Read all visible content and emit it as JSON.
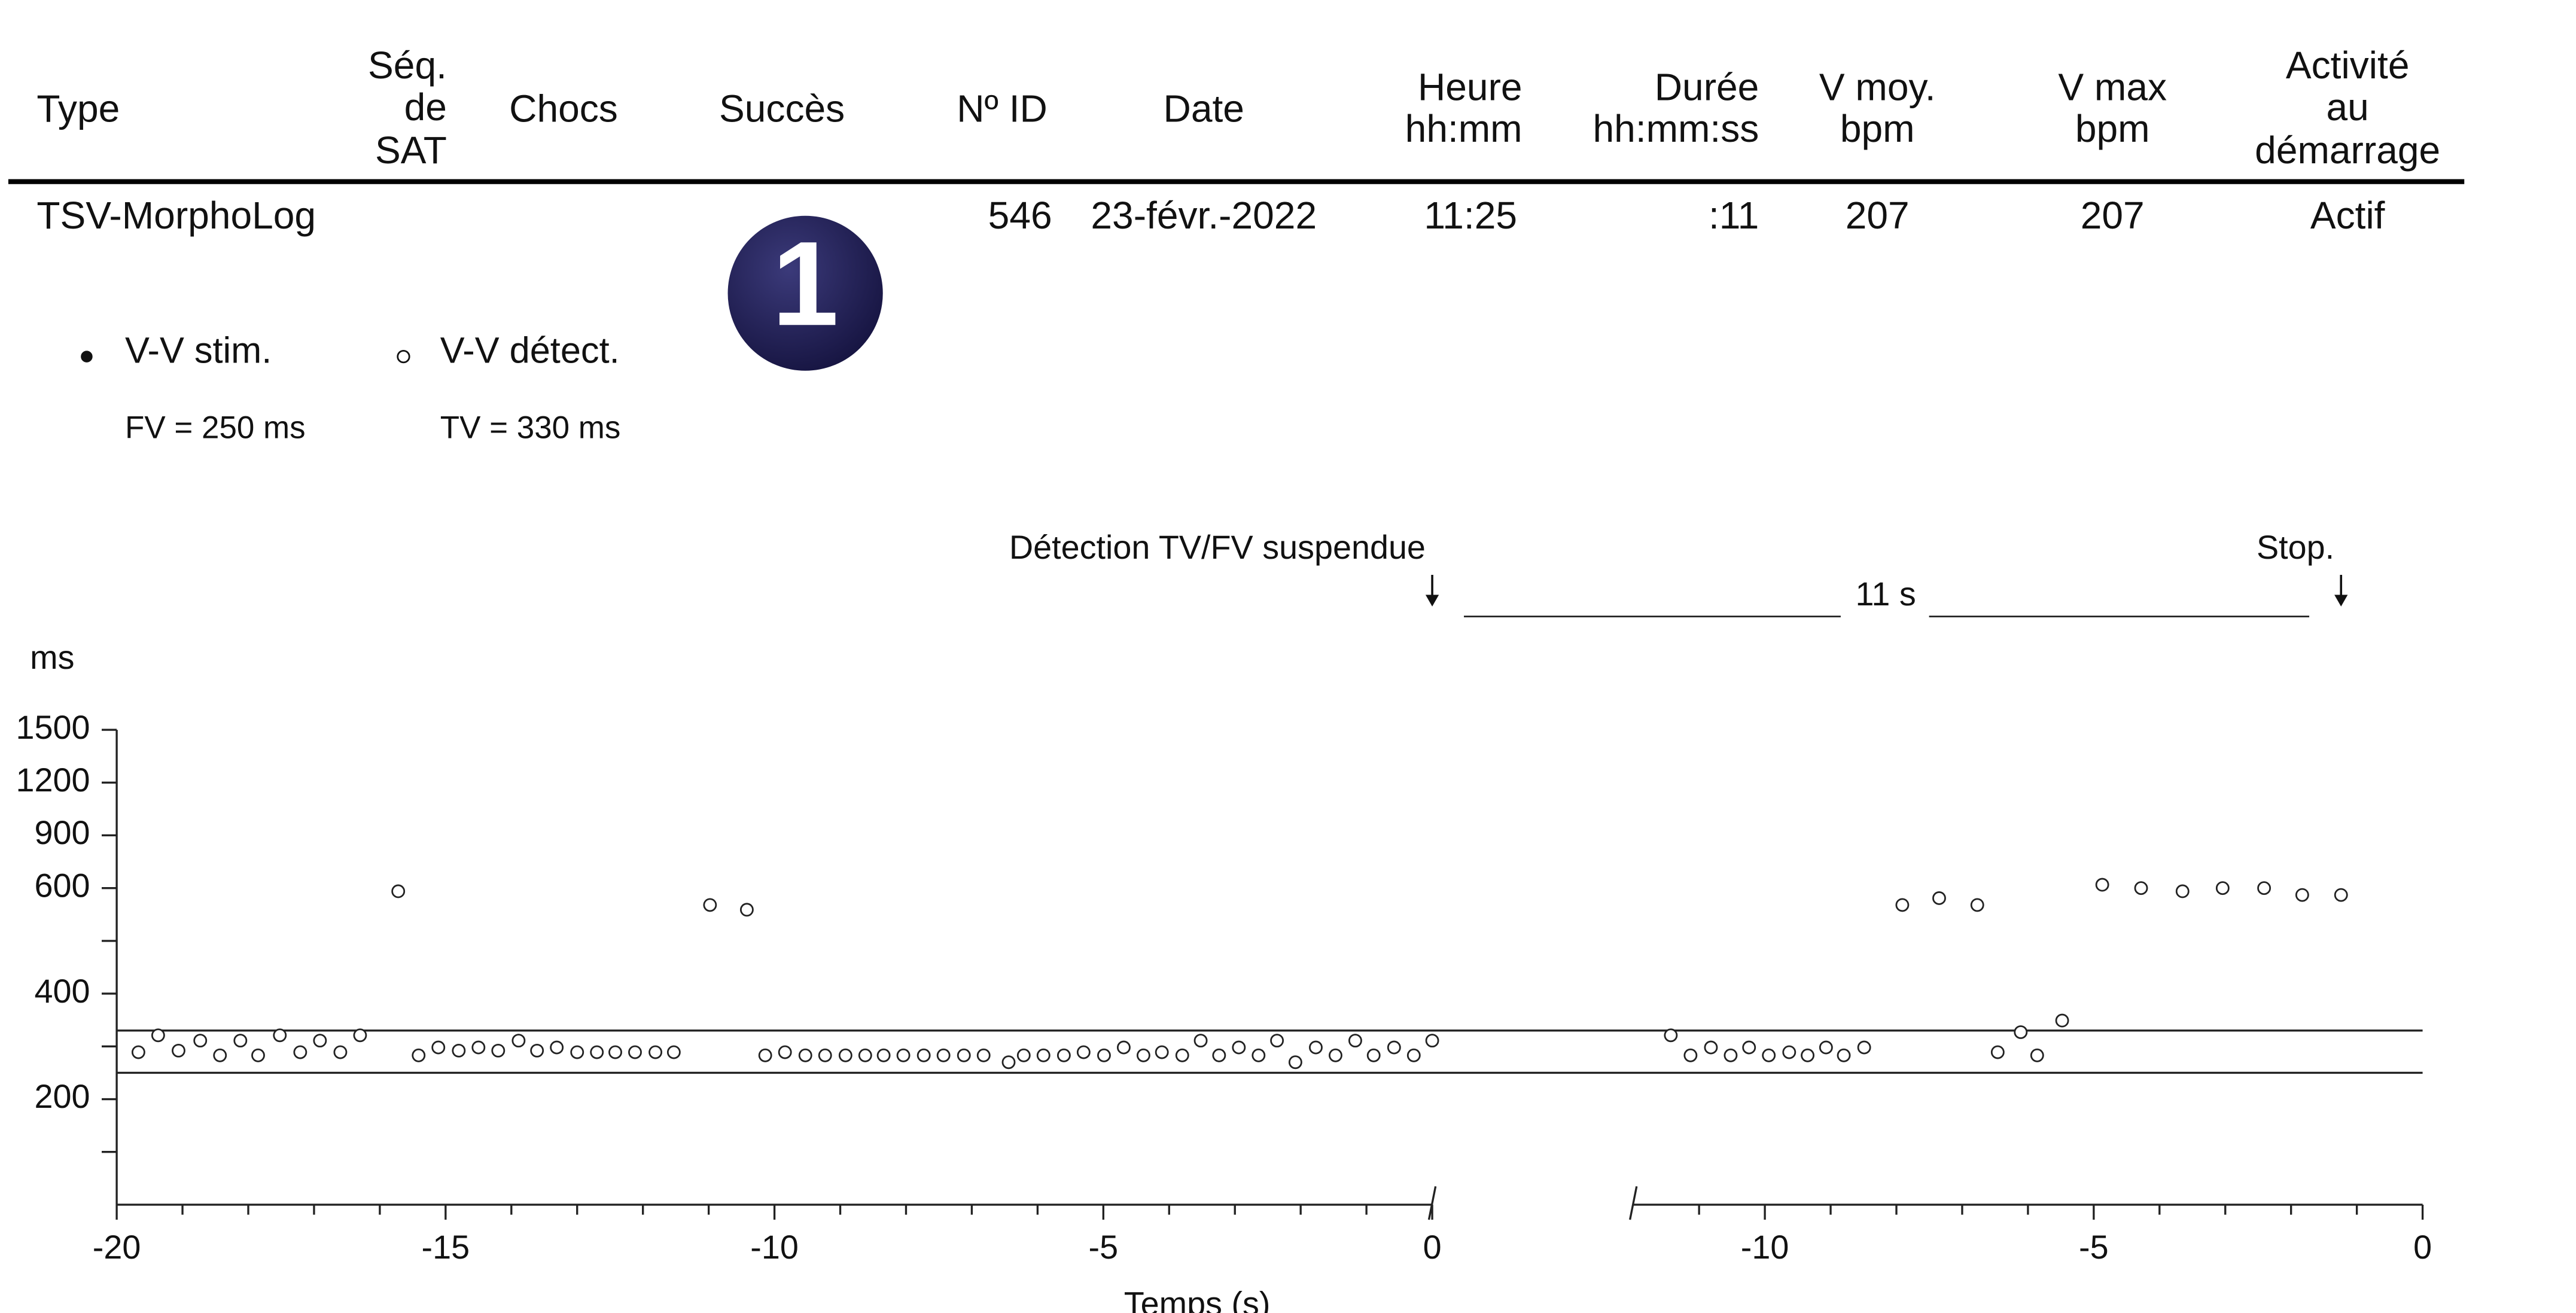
{
  "table": {
    "columns": [
      {
        "header": [
          "Type"
        ]
      },
      {
        "header": [
          "Séq.",
          "de",
          "SAT"
        ]
      },
      {
        "header": [
          "Chocs"
        ]
      },
      {
        "header": [
          "Succès"
        ]
      },
      {
        "header": [
          "Nº ID"
        ]
      },
      {
        "header": [
          "Date"
        ]
      },
      {
        "header": [
          "Heure",
          "hh:mm"
        ]
      },
      {
        "header": [
          "Durée",
          "hh:mm:ss"
        ]
      },
      {
        "header": [
          "V moy.",
          "bpm"
        ]
      },
      {
        "header": [
          "V max",
          "bpm"
        ]
      },
      {
        "header": [
          "Activité",
          "au",
          "démarrage"
        ]
      }
    ],
    "rows": [
      [
        "TSV-MorphoLog",
        null,
        null,
        null,
        "546",
        "23-févr.-2022",
        "11:25",
        ":11",
        "207",
        "207",
        "Actif"
      ]
    ]
  },
  "badge": "1",
  "duration_label": "11 s",
  "chart_data": [
    {
      "type": "scatter",
      "ylabel": "ms",
      "xlabel": "Temps (s)",
      "annotation": {
        "text": "Détection TV/FV suspendue",
        "x": 0
      },
      "xlim": [
        -20,
        0
      ],
      "xticks": [
        -20,
        -15,
        -10,
        -5,
        0
      ],
      "xticks_minor": [
        -19,
        -18,
        -17,
        -16,
        -14,
        -13,
        -12,
        -11,
        -9,
        -8,
        -7,
        -6,
        -4,
        -3,
        -2,
        -1
      ],
      "ylim": [
        0,
        1500
      ],
      "y_scale": {
        "type": "piecewise",
        "break": 600
      },
      "yticks": [
        200,
        400,
        600,
        900,
        1200,
        1500
      ],
      "yticks_minor": [
        100,
        300,
        500
      ],
      "thresholds": [
        {
          "label": "FV = 250 ms",
          "value": 250
        },
        {
          "label": "TV = 330 ms",
          "value": 330
        }
      ],
      "series": [
        {
          "name": "V-V stim.",
          "marker": "filled",
          "x": [],
          "values": []
        },
        {
          "name": "V-V détect.",
          "marker": "open",
          "x": [
            -19.67,
            -19.37,
            -19.06,
            -18.73,
            -18.43,
            -18.12,
            -17.85,
            -17.52,
            -17.21,
            -16.91,
            -16.6,
            -16.3,
            -15.72,
            -15.41,
            -15.11,
            -14.8,
            -14.5,
            -14.2,
            -13.89,
            -13.61,
            -13.31,
            -13.0,
            -12.7,
            -12.42,
            -12.12,
            -11.81,
            -11.53,
            -10.98,
            -10.42,
            -10.14,
            -9.84,
            -9.53,
            -9.23,
            -8.92,
            -8.62,
            -8.34,
            -8.04,
            -7.73,
            -7.43,
            -7.12,
            -6.82,
            -6.44,
            -6.21,
            -5.91,
            -5.6,
            -5.3,
            -4.99,
            -4.69,
            -4.39,
            -4.11,
            -3.8,
            -3.52,
            -3.24,
            -2.94,
            -2.64,
            -2.36,
            -2.08,
            -1.77,
            -1.47,
            -1.17,
            -0.89,
            -0.58,
            -0.28,
            0.0
          ],
          "values": [
            289,
            321,
            292,
            311,
            283,
            311,
            283,
            321,
            289,
            311,
            289,
            321,
            594,
            283,
            298,
            292,
            298,
            292,
            311,
            292,
            298,
            289,
            289,
            289,
            289,
            289,
            289,
            568,
            559,
            283,
            289,
            283,
            283,
            283,
            283,
            283,
            283,
            283,
            283,
            283,
            283,
            270,
            283,
            283,
            283,
            289,
            283,
            298,
            283,
            289,
            283,
            311,
            283,
            298,
            283,
            311,
            270,
            298,
            283,
            311,
            283,
            298,
            283,
            311
          ]
        }
      ]
    },
    {
      "type": "scatter",
      "annotation": {
        "text": "Stop.",
        "x": -1.24
      },
      "xlim": [
        -12,
        0
      ],
      "xticks": [
        -10,
        -5,
        0
      ],
      "xticks_minor": [
        -11,
        -9,
        -8,
        -7,
        -6,
        -4,
        -3,
        -2,
        -1
      ],
      "ylim": [
        0,
        1500
      ],
      "y_scale": {
        "type": "piecewise",
        "break": 600
      },
      "series": [
        {
          "marker": "open",
          "x": [
            -11.43,
            -11.13,
            -10.82,
            -10.52,
            -10.24,
            -9.94,
            -9.63,
            -9.35,
            -9.07,
            -8.8,
            -8.49,
            -7.91,
            -7.35,
            -6.77,
            -6.46,
            -6.11,
            -5.86,
            -5.48,
            -4.87,
            -4.28,
            -3.65,
            -3.04,
            -2.41,
            -1.83,
            -1.24
          ],
          "values": [
            321,
            283,
            298,
            283,
            298,
            283,
            289,
            283,
            298,
            283,
            298,
            568,
            581,
            568,
            289,
            327,
            283,
            349,
            619,
            600,
            594,
            600,
            600,
            587,
            587
          ]
        }
      ]
    }
  ]
}
